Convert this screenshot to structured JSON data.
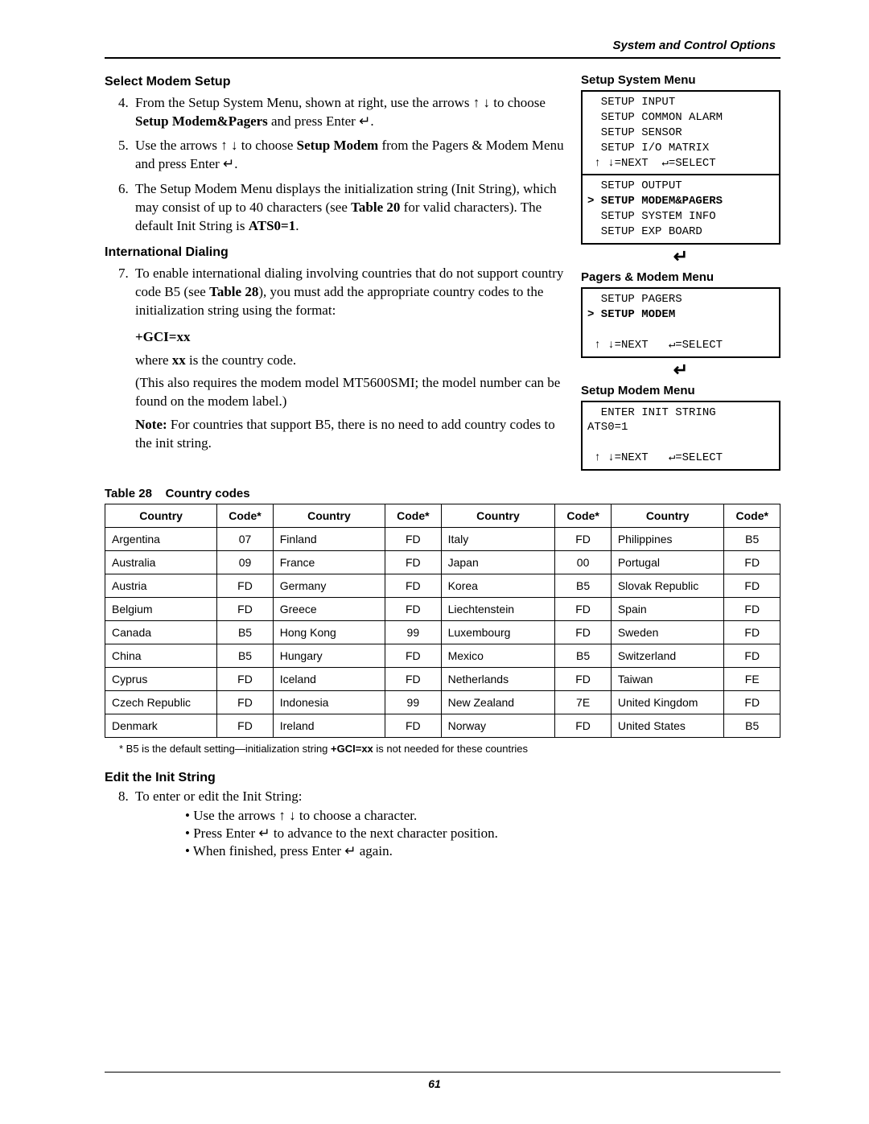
{
  "header": {
    "title": "System and Control Options"
  },
  "sections": {
    "select_modem_setup": {
      "title": "Select Modem Setup",
      "step4_a": "From the Setup System Menu, shown at right, use the arrows ↑ ↓ to choose ",
      "step4_bold": "Setup Modem&Pagers",
      "step4_b": " and press Enter ↵.",
      "step5_a": "Use the arrows ↑ ↓ to choose ",
      "step5_bold": "Setup Modem",
      "step5_b": " from the Pagers & Modem Menu and press Enter ↵.",
      "step6_a": "The Setup Modem Menu displays the initialization string (Init String), which may consist of up to 40 characters (see ",
      "step6_bold1": "Table 20",
      "step6_b": " for valid characters). The default Init String is ",
      "step6_bold2": "ATS0=1",
      "step6_c": "."
    },
    "international_dialing": {
      "title": "International Dialing",
      "step7_a": "To enable international dialing involving countries that do not support country code B5 (see ",
      "step7_bold": "Table 28",
      "step7_b": "), you must add the appropriate country codes to the initialization string using the format:",
      "gci": "+GCI=xx",
      "where_a": "where ",
      "where_bold": "xx",
      "where_b": " is the country code.",
      "model_note": "(This also requires the modem model MT5600SMI; the model number can be found on the modem label.)",
      "note_bold": "Note:",
      "note_text": " For countries that support B5, there is no need to add country codes to the init string."
    },
    "edit_init_string": {
      "title": "Edit the Init String",
      "step8": "To enter or edit the Init String:",
      "b1": "Use the arrows ↑ ↓ to choose a character.",
      "b2": "Press Enter ↵ to advance to the next character position.",
      "b3": "When finished, press Enter ↵ again."
    }
  },
  "menus": {
    "system": {
      "title": "Setup System Menu",
      "l1": "  SETUP INPUT",
      "l2": "  SETUP COMMON ALARM",
      "l3": "  SETUP SENSOR",
      "l4": "  SETUP I/O MATRIX",
      "nav1": " ↑ ↓=NEXT  ↵=SELECT",
      "l5": "  SETUP OUTPUT",
      "l6": "> SETUP MODEM&PAGERS",
      "l7": "  SETUP SYSTEM INFO",
      "l8": "  SETUP EXP BOARD"
    },
    "pagers": {
      "title": "Pagers & Modem Menu",
      "l1": "  SETUP PAGERS",
      "l2": "> SETUP MODEM",
      "blank": " ",
      "nav": " ↑ ↓=NEXT   ↵=SELECT"
    },
    "modem": {
      "title": "Setup Modem Menu",
      "l1": "  ENTER INIT STRING",
      "l2": "ATS0=1",
      "blank": " ",
      "nav": " ↑ ↓=NEXT   ↵=SELECT"
    }
  },
  "table": {
    "caption_a": "Table 28",
    "caption_b": "Country codes",
    "h_country": "Country",
    "h_code": "Code*",
    "rows": [
      [
        "Argentina",
        "07",
        "Finland",
        "FD",
        "Italy",
        "FD",
        "Philippines",
        "B5"
      ],
      [
        "Australia",
        "09",
        "France",
        "FD",
        "Japan",
        "00",
        "Portugal",
        "FD"
      ],
      [
        "Austria",
        "FD",
        "Germany",
        "FD",
        "Korea",
        "B5",
        "Slovak Republic",
        "FD"
      ],
      [
        "Belgium",
        "FD",
        "Greece",
        "FD",
        "Liechtenstein",
        "FD",
        "Spain",
        "FD"
      ],
      [
        "Canada",
        "B5",
        "Hong Kong",
        "99",
        "Luxembourg",
        "FD",
        "Sweden",
        "FD"
      ],
      [
        "China",
        "B5",
        "Hungary",
        "FD",
        "Mexico",
        "B5",
        "Switzerland",
        "FD"
      ],
      [
        "Cyprus",
        "FD",
        "Iceland",
        "FD",
        "Netherlands",
        "FD",
        "Taiwan",
        "FE"
      ],
      [
        "Czech Republic",
        "FD",
        "Indonesia",
        "99",
        "New Zealand",
        "7E",
        "United Kingdom",
        "FD"
      ],
      [
        "Denmark",
        "FD",
        "Ireland",
        "FD",
        "Norway",
        "FD",
        "United States",
        "B5"
      ]
    ],
    "footnote_a": "* B5 is the default setting—initialization string ",
    "footnote_bold": "+GCI=xx",
    "footnote_b": " is not needed for these countries"
  },
  "footer": {
    "page": "61"
  }
}
